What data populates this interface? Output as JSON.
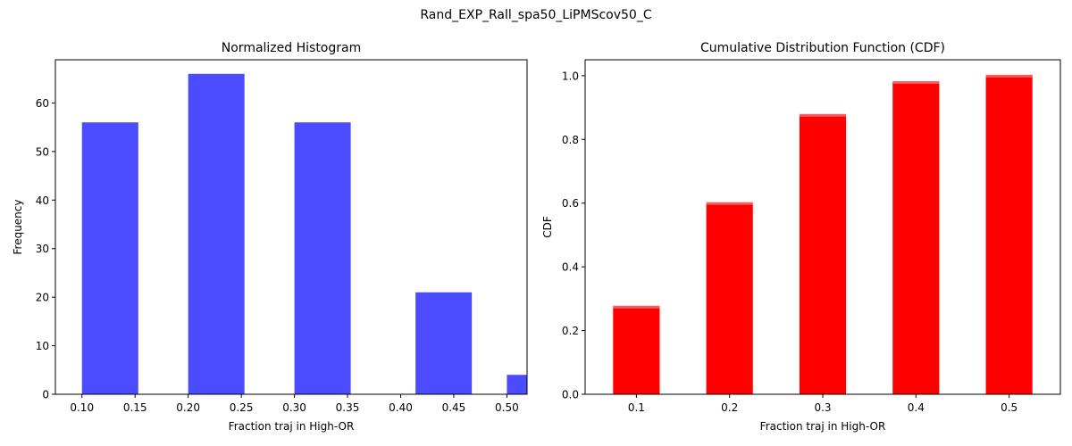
{
  "figure": {
    "suptitle": "Rand_EXP_Rall_spa50_LiPMScov50_C"
  },
  "chart_data": [
    {
      "type": "bar",
      "title": "Normalized Histogram",
      "xlabel": "Fraction traj in High-OR",
      "ylabel": "Frequency",
      "xlim": [
        0.075,
        0.519
      ],
      "ylim": [
        0,
        68.9
      ],
      "xticks": [
        0.1,
        0.15,
        0.2,
        0.25,
        0.3,
        0.35,
        0.4,
        0.45,
        0.5
      ],
      "xtick_labels": [
        "0.10",
        "0.15",
        "0.20",
        "0.25",
        "0.30",
        "0.35",
        "0.40",
        "0.45",
        "0.50"
      ],
      "yticks": [
        0,
        10,
        20,
        30,
        40,
        50,
        60
      ],
      "ytick_labels": [
        "0",
        "10",
        "20",
        "30",
        "40",
        "50",
        "60"
      ],
      "bins": [
        {
          "x_start": 0.1,
          "x_end": 0.153,
          "value": 56
        },
        {
          "x_start": 0.2,
          "x_end": 0.253,
          "value": 66
        },
        {
          "x_start": 0.3,
          "x_end": 0.353,
          "value": 56
        },
        {
          "x_start": 0.414,
          "x_end": 0.467,
          "value": 21
        },
        {
          "x_start": 0.5,
          "x_end": 0.519,
          "value": 4
        }
      ],
      "color": "#4b4bff",
      "grid": false
    },
    {
      "type": "bar",
      "title": "Cumulative Distribution Function (CDF)",
      "xlabel": "Fraction traj in High-OR",
      "ylabel": "CDF",
      "xlim": [
        0.045,
        0.555
      ],
      "ylim": [
        0,
        1.05
      ],
      "xticks": [
        0.1,
        0.2,
        0.3,
        0.4,
        0.5
      ],
      "xtick_labels": [
        "0.1",
        "0.2",
        "0.3",
        "0.4",
        "0.5"
      ],
      "yticks": [
        0,
        0.2,
        0.4,
        0.6,
        0.8,
        1.0
      ],
      "ytick_labels": [
        "0.0",
        "0.2",
        "0.4",
        "0.6",
        "0.8",
        "1.0"
      ],
      "categories": [
        0.1,
        0.2,
        0.3,
        0.4,
        0.5
      ],
      "values": [
        0.275,
        0.6,
        0.877,
        0.98,
        1.0
      ],
      "bar_width": 0.05,
      "color": "#ff0000",
      "grid": false
    }
  ]
}
